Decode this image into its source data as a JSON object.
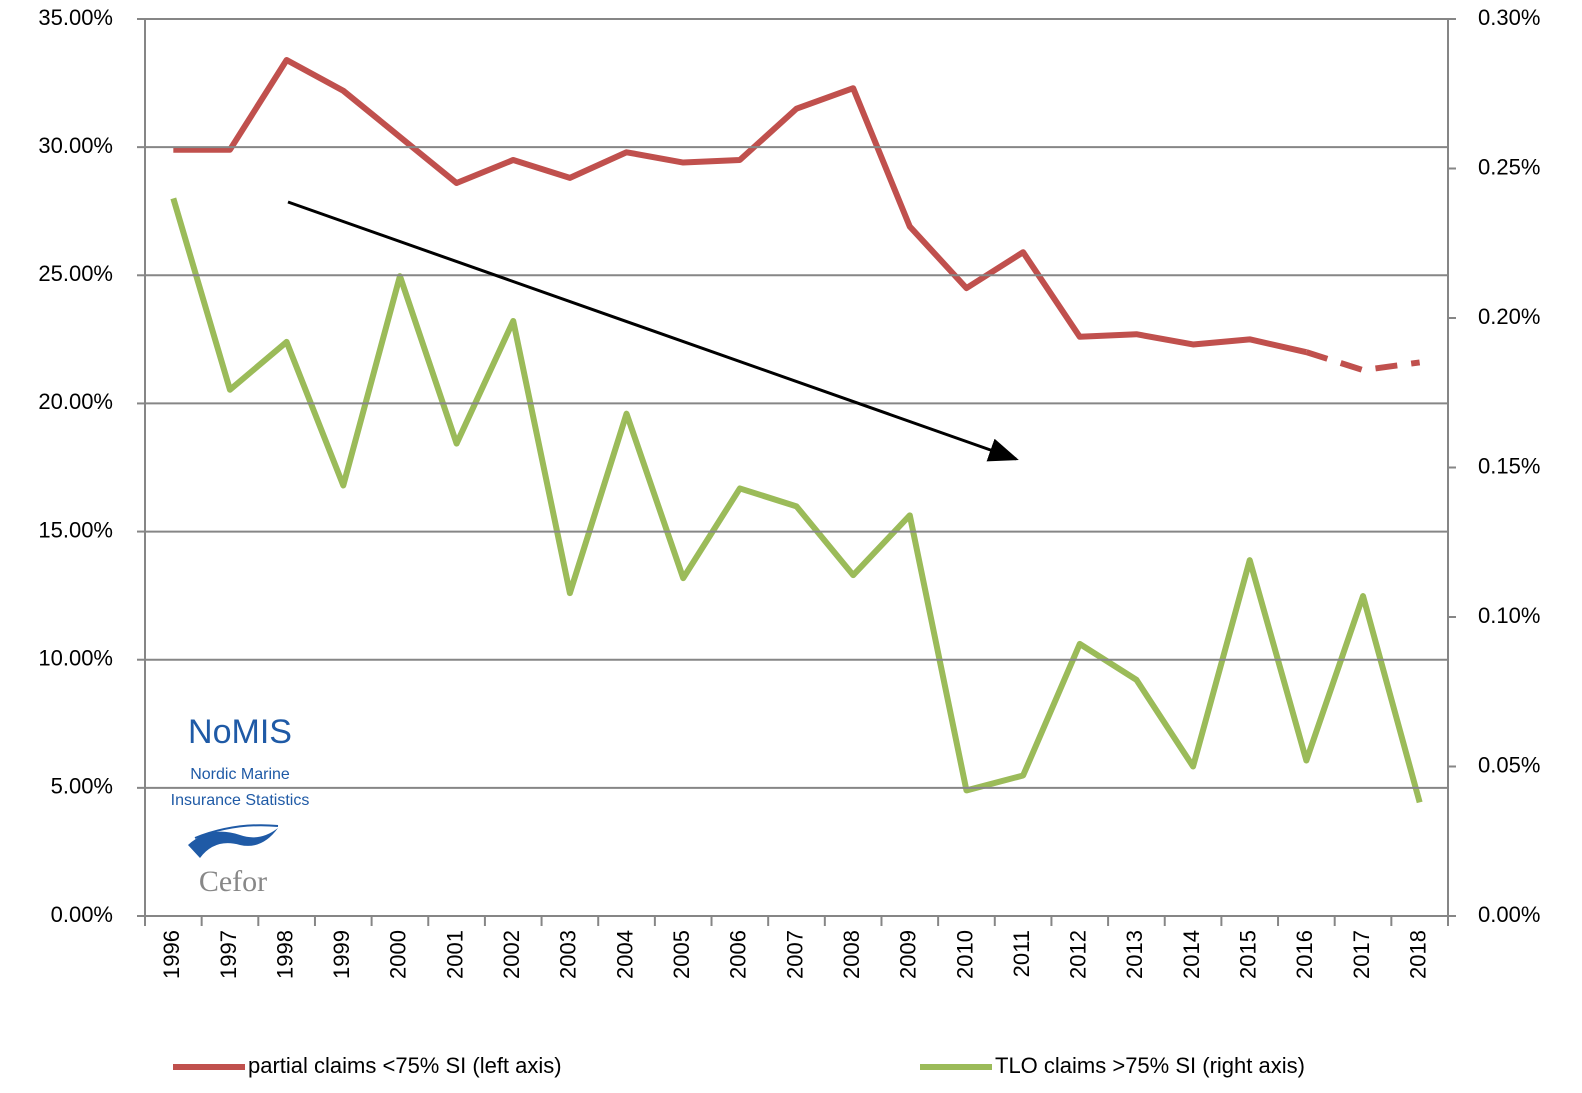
{
  "chart_data": {
    "type": "line",
    "categories": [
      "1996",
      "1997",
      "1998",
      "1999",
      "2000",
      "2001",
      "2002",
      "2003",
      "2004",
      "2005",
      "2006",
      "2007",
      "2008",
      "2009",
      "2010",
      "2011",
      "2012",
      "2013",
      "2014",
      "2015",
      "2016",
      "2017",
      "2018"
    ],
    "series": [
      {
        "name": "partial claims <75% SI (left axis)",
        "color": "#c0504d",
        "axis": "y",
        "dashed_from": 20,
        "values": [
          29.9,
          29.9,
          33.4,
          32.2,
          30.4,
          28.6,
          29.5,
          28.8,
          29.8,
          29.4,
          29.5,
          31.5,
          32.3,
          26.9,
          24.5,
          25.9,
          22.6,
          22.7,
          22.3,
          22.5,
          22.0,
          21.3,
          21.6
        ]
      },
      {
        "name": "TLO claims >75% SI (right axis)",
        "color": "#9bbb59",
        "axis": "y2",
        "values": [
          0.24,
          0.176,
          0.192,
          0.144,
          0.214,
          0.158,
          0.199,
          0.108,
          0.168,
          0.113,
          0.143,
          0.137,
          0.114,
          0.134,
          0.042,
          0.047,
          0.091,
          0.079,
          0.05,
          0.119,
          0.052,
          0.107,
          0.038
        ]
      }
    ],
    "ylim": [
      0,
      35
    ],
    "yticks": [
      {
        "value": 0,
        "label": "0.00%"
      },
      {
        "value": 5,
        "label": "5.00%"
      },
      {
        "value": 10,
        "label": "10.00%"
      },
      {
        "value": 15,
        "label": "15.00%"
      },
      {
        "value": 20,
        "label": "20.00%"
      },
      {
        "value": 25,
        "label": "25.00%"
      },
      {
        "value": 30,
        "label": "30.00%"
      },
      {
        "value": 35,
        "label": "35.00%"
      }
    ],
    "y2lim": [
      0,
      0.3
    ],
    "y2ticks": [
      {
        "value": 0,
        "label": "0.00%"
      },
      {
        "value": 0.05,
        "label": "0.05%"
      },
      {
        "value": 0.1,
        "label": "0.10%"
      },
      {
        "value": 0.15,
        "label": "0.15%"
      },
      {
        "value": 0.2,
        "label": "0.20%"
      },
      {
        "value": 0.25,
        "label": "0.25%"
      },
      {
        "value": 0.3,
        "label": "0.30%"
      }
    ],
    "grid": true,
    "legend": "bottom",
    "logo": {
      "title": "NoMIS",
      "line1": "Nordic Marine",
      "line2": "Insurance Statistics",
      "brand": "Cefor"
    }
  }
}
